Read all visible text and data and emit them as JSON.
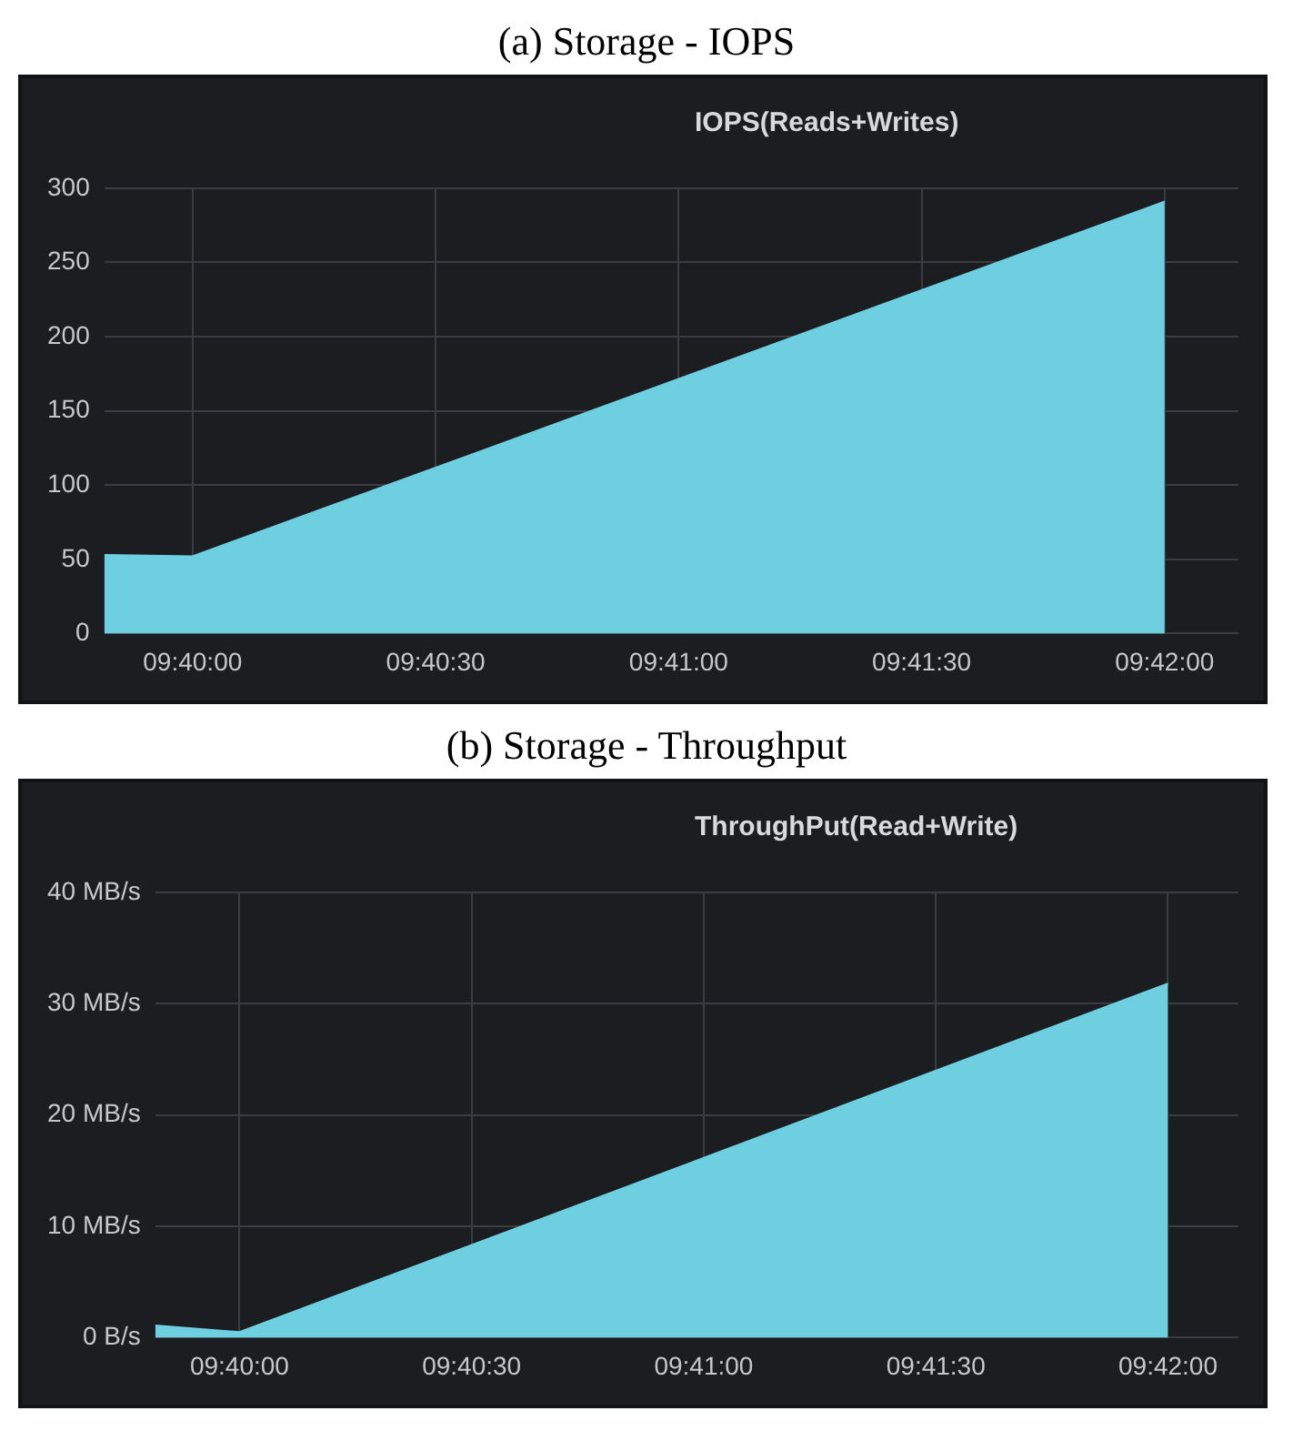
{
  "chart_data": [
    {
      "type": "area",
      "title": "IOPS(Reads+Writes)",
      "annotations": [
        "(a) Storage - IOPS"
      ],
      "x": [
        9.66364,
        9.666667,
        9.7
      ],
      "series": [
        {
          "color": "#6dcfe0",
          "values": [
            53,
            52,
            291
          ]
        }
      ],
      "xlim": [
        9.66364,
        9.70253
      ],
      "xticks": [
        {
          "value": 9.666667,
          "label": "09:40:00"
        },
        {
          "value": 9.675,
          "label": "09:40:30"
        },
        {
          "value": 9.683333,
          "label": "09:41:00"
        },
        {
          "value": 9.691667,
          "label": "09:41:30"
        },
        {
          "value": 9.7,
          "label": "09:42:00"
        }
      ],
      "ylim": [
        0,
        300
      ],
      "yticks": [
        0,
        50,
        100,
        150,
        200,
        250,
        300
      ],
      "grid": true,
      "legend": false
    },
    {
      "type": "area",
      "title": "ThroughPut(Read+Write)",
      "annotations": [
        "(b) Storage - Throughput"
      ],
      "x": [
        9.66364,
        9.666667,
        9.7
      ],
      "series": [
        {
          "color": "#6dcfe0",
          "values": [
            1.1,
            0.5,
            31.8
          ]
        }
      ],
      "xlim": [
        9.66364,
        9.70253
      ],
      "xticks": [
        {
          "value": 9.666667,
          "label": "09:40:00"
        },
        {
          "value": 9.675,
          "label": "09:40:30"
        },
        {
          "value": 9.683333,
          "label": "09:41:00"
        },
        {
          "value": 9.691667,
          "label": "09:41:30"
        },
        {
          "value": 9.7,
          "label": "09:42:00"
        }
      ],
      "ylim": [
        0,
        40
      ],
      "yticks": [
        {
          "value": 0,
          "label": "0 B/s"
        },
        {
          "value": 10,
          "label": "10 MB/s"
        },
        {
          "value": 20,
          "label": "20 MB/s"
        },
        {
          "value": 30,
          "label": "30 MB/s"
        },
        {
          "value": 40,
          "label": "40 MB/s"
        }
      ],
      "grid": true,
      "legend": false
    }
  ]
}
